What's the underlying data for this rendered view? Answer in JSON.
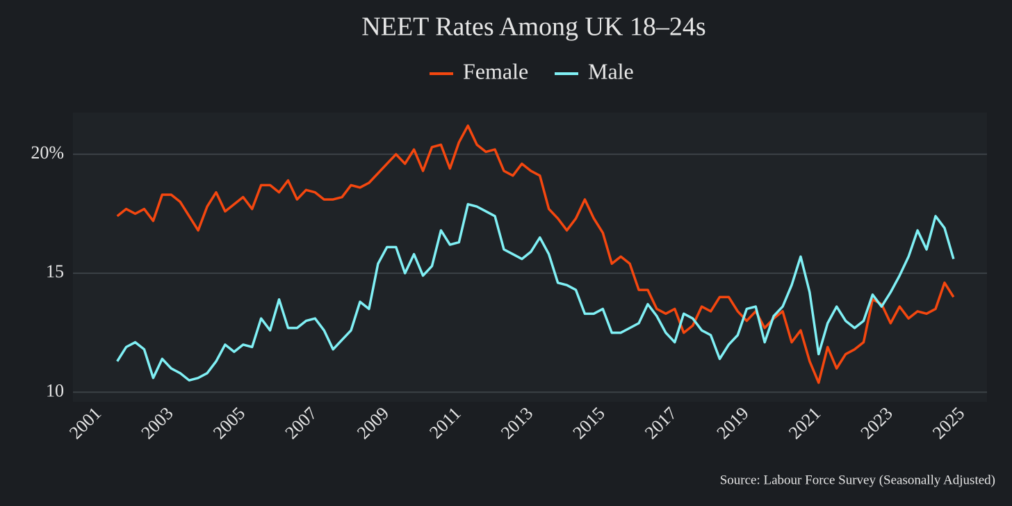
{
  "chart_data": {
    "type": "line",
    "title": "NEET Rates Among UK 18–24s",
    "source": "Source: Labour Force Survey (Seasonally Adjusted)",
    "x": [
      2001.5,
      2001.75,
      2002,
      2002.25,
      2002.5,
      2002.75,
      2003,
      2003.25,
      2003.5,
      2003.75,
      2004,
      2004.25,
      2004.5,
      2004.75,
      2005,
      2005.25,
      2005.5,
      2005.75,
      2006,
      2006.25,
      2006.5,
      2006.75,
      2007,
      2007.25,
      2007.5,
      2007.75,
      2008,
      2008.25,
      2008.5,
      2008.75,
      2009,
      2009.25,
      2009.5,
      2009.75,
      2010,
      2010.25,
      2010.5,
      2010.75,
      2011,
      2011.25,
      2011.5,
      2011.75,
      2012,
      2012.25,
      2012.5,
      2012.75,
      2013,
      2013.25,
      2013.5,
      2013.75,
      2014,
      2014.25,
      2014.5,
      2014.75,
      2015,
      2015.25,
      2015.5,
      2015.75,
      2016,
      2016.25,
      2016.5,
      2016.75,
      2017,
      2017.25,
      2017.5,
      2017.75,
      2018,
      2018.25,
      2018.5,
      2018.75,
      2019,
      2019.25,
      2019.5,
      2019.75,
      2020,
      2020.25,
      2020.5,
      2020.75,
      2021,
      2021.25,
      2021.5,
      2021.75,
      2022,
      2022.25,
      2022.5,
      2022.75,
      2023,
      2023.25,
      2023.5,
      2023.75,
      2024,
      2024.25,
      2024.5,
      2024.75
    ],
    "series": [
      {
        "name": "Female",
        "color": "#f5470f",
        "values": [
          17.4,
          17.7,
          17.5,
          17.7,
          17.2,
          18.3,
          18.3,
          18.0,
          17.4,
          16.8,
          17.8,
          18.4,
          17.6,
          17.9,
          18.2,
          17.7,
          18.7,
          18.7,
          18.4,
          18.9,
          18.1,
          18.5,
          18.4,
          18.1,
          18.1,
          18.2,
          18.7,
          18.6,
          18.8,
          19.2,
          19.6,
          20.0,
          19.6,
          20.2,
          19.3,
          20.3,
          20.4,
          19.4,
          20.5,
          21.2,
          20.4,
          20.1,
          20.2,
          19.3,
          19.1,
          19.6,
          19.3,
          19.1,
          17.7,
          17.3,
          16.8,
          17.3,
          18.1,
          17.3,
          16.7,
          15.4,
          15.7,
          15.4,
          14.3,
          14.3,
          13.5,
          13.3,
          13.5,
          12.5,
          12.8,
          13.6,
          13.4,
          14.0,
          14.0,
          13.4,
          13.0,
          13.4,
          12.7,
          13.1,
          13.4,
          12.1,
          12.6,
          11.3,
          10.4,
          11.9,
          11.0,
          11.6,
          11.8,
          12.1,
          13.9,
          13.7,
          12.9,
          13.6,
          13.1,
          13.4,
          13.3,
          13.5,
          14.6,
          14.0
        ]
      },
      {
        "name": "Male",
        "color": "#80f0f5",
        "values": [
          11.3,
          11.9,
          12.1,
          11.8,
          10.6,
          11.4,
          11.0,
          10.8,
          10.5,
          10.6,
          10.8,
          11.3,
          12.0,
          11.7,
          12.0,
          11.9,
          13.1,
          12.6,
          13.9,
          12.7,
          12.7,
          13.0,
          13.1,
          12.6,
          11.8,
          12.2,
          12.6,
          13.8,
          13.5,
          15.4,
          16.1,
          16.1,
          15.0,
          15.8,
          14.9,
          15.3,
          16.8,
          16.2,
          16.3,
          17.9,
          17.8,
          17.6,
          17.4,
          16.0,
          15.8,
          15.6,
          15.9,
          16.5,
          15.8,
          14.6,
          14.5,
          14.3,
          13.3,
          13.3,
          13.5,
          12.5,
          12.5,
          12.7,
          12.9,
          13.7,
          13.2,
          12.5,
          12.1,
          13.3,
          13.1,
          12.6,
          12.4,
          11.4,
          12.0,
          12.4,
          13.5,
          13.6,
          12.1,
          13.2,
          13.6,
          14.5,
          15.7,
          14.2,
          11.6,
          12.9,
          13.6,
          13.0,
          12.7,
          13.0,
          14.1,
          13.6,
          14.2,
          14.9,
          15.7,
          16.8,
          16.0,
          17.4,
          16.9,
          15.6
        ]
      }
    ],
    "xlim": [
      2000.27,
      2025.68
    ],
    "xticks": [
      2001,
      2003,
      2005,
      2007,
      2009,
      2011,
      2013,
      2015,
      2017,
      2019,
      2021,
      2023,
      2025
    ],
    "ylim": [
      9.6,
      21.75
    ],
    "yticks": [
      10,
      15,
      {
        "value": 20,
        "label": "20%"
      }
    ],
    "grid": true,
    "legend": "top"
  }
}
